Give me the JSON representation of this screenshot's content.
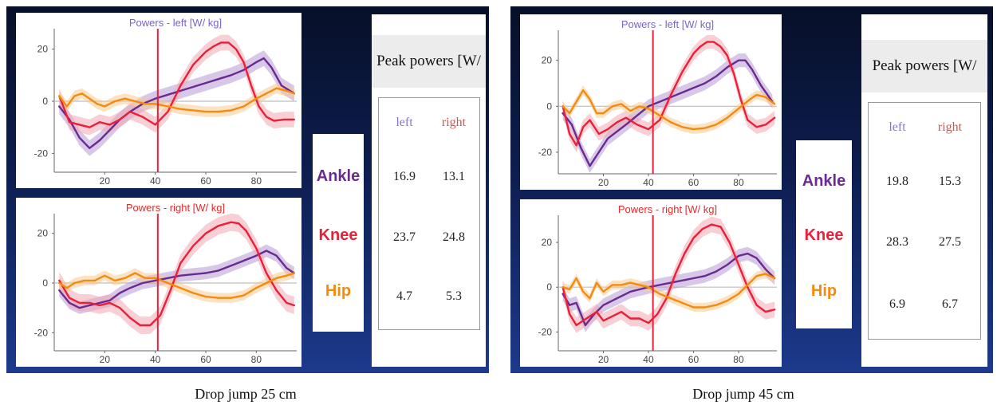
{
  "chart_data": [
    {
      "type": "line",
      "title": "Powers - left [W/ kg]",
      "xlabel": "",
      "ylabel": "",
      "xlim": [
        0,
        96
      ],
      "ylim": [
        -26,
        26
      ],
      "xticks": [
        20,
        40,
        60,
        80
      ],
      "yticks": [
        -20,
        0,
        20
      ],
      "vline_x": 41,
      "series": [
        {
          "name": "Ankle",
          "color": "#6a2a90",
          "band_color": "#b89ad6",
          "band": 3,
          "x": [
            2,
            6,
            10,
            14,
            18,
            22,
            26,
            30,
            35,
            40,
            45,
            50,
            55,
            60,
            65,
            70,
            75,
            80,
            83,
            86,
            90,
            95
          ],
          "y": [
            -2,
            -7,
            -14,
            -18,
            -15,
            -11,
            -7,
            -4,
            -1,
            1,
            2.5,
            4,
            5.5,
            7,
            8.5,
            10,
            12,
            15,
            16.5,
            13,
            6,
            3
          ]
        },
        {
          "name": "Knee",
          "color": "#e8203a",
          "band_color": "#f3a7b0",
          "band": 3,
          "x": [
            2,
            6,
            10,
            14,
            18,
            22,
            26,
            30,
            35,
            40,
            45,
            50,
            55,
            60,
            63,
            66,
            69,
            72,
            75,
            78,
            81,
            84,
            87,
            91,
            95
          ],
          "y": [
            2,
            -8,
            -9,
            -10,
            -8,
            -9,
            -7,
            -4,
            -6,
            -9,
            -4,
            6,
            14,
            19,
            21,
            22.5,
            22.5,
            20,
            15,
            6,
            -2,
            -6,
            -7.5,
            -7,
            -7
          ]
        },
        {
          "name": "Hip",
          "color": "#f58a10",
          "band_color": "#f8cb8f",
          "band": 2,
          "x": [
            2,
            5,
            8,
            11,
            14,
            17,
            20,
            24,
            28,
            32,
            36,
            40,
            45,
            50,
            55,
            60,
            65,
            70,
            75,
            80,
            85,
            88,
            92,
            95
          ],
          "y": [
            2,
            -2,
            2,
            3,
            1,
            -1,
            -2,
            0,
            1,
            0,
            -1,
            -1,
            -2,
            -3,
            -3.5,
            -4,
            -4,
            -3.5,
            -2,
            1,
            3.5,
            5,
            4,
            3
          ]
        }
      ]
    },
    {
      "type": "line",
      "title": "Powers - right [W/ kg]",
      "xlabel": "",
      "ylabel": "",
      "xlim": [
        0,
        96
      ],
      "ylim": [
        -26,
        26
      ],
      "xticks": [
        20,
        40,
        60,
        80
      ],
      "yticks": [
        -20,
        0,
        20
      ],
      "vline_x": 41,
      "series": [
        {
          "name": "Ankle",
          "color": "#6a2a90",
          "band_color": "#b89ad6",
          "band": 2.5,
          "x": [
            2,
            6,
            10,
            14,
            18,
            22,
            26,
            30,
            35,
            40,
            45,
            50,
            55,
            60,
            65,
            70,
            75,
            80,
            84,
            88,
            92,
            95
          ],
          "y": [
            -3,
            -8,
            -10,
            -9,
            -8,
            -7,
            -4,
            -2,
            0,
            1,
            2,
            3,
            3.5,
            4,
            5,
            7,
            9,
            11,
            13,
            11,
            6,
            4
          ]
        },
        {
          "name": "Knee",
          "color": "#e8203a",
          "band_color": "#f3a7b0",
          "band": 3.5,
          "x": [
            2,
            6,
            10,
            14,
            18,
            22,
            26,
            30,
            34,
            38,
            42,
            46,
            50,
            55,
            60,
            65,
            70,
            73,
            76,
            80,
            84,
            88,
            92,
            95
          ],
          "y": [
            1,
            -6,
            -8,
            -8,
            -9,
            -8,
            -10,
            -14,
            -17,
            -17,
            -13,
            -3,
            8,
            15,
            20,
            23,
            24.5,
            24,
            21,
            14,
            4,
            -3,
            -8,
            -9
          ]
        },
        {
          "name": "Hip",
          "color": "#f58a10",
          "band_color": "#f8cb8f",
          "band": 2,
          "x": [
            2,
            5,
            8,
            12,
            16,
            20,
            24,
            28,
            32,
            36,
            40,
            45,
            50,
            55,
            60,
            65,
            70,
            75,
            80,
            84,
            88,
            92,
            95
          ],
          "y": [
            0,
            -2,
            0,
            1,
            1,
            3,
            1,
            2,
            4,
            2,
            2,
            0,
            -2,
            -4,
            -5.5,
            -6,
            -6,
            -5,
            -2,
            0,
            2,
            3,
            4
          ]
        }
      ]
    },
    {
      "type": "line",
      "title": "Powers - left [W/ kg]",
      "xlabel": "",
      "ylabel": "",
      "xlim": [
        0,
        97
      ],
      "ylim": [
        -28,
        31
      ],
      "xticks": [
        20,
        40,
        60,
        80
      ],
      "yticks": [
        -20,
        0,
        20
      ],
      "vline_x": 42,
      "series": [
        {
          "name": "Ankle",
          "color": "#6a2a90",
          "band_color": "#b89ad6",
          "band": 3,
          "x": [
            2,
            6,
            10,
            14,
            18,
            22,
            26,
            30,
            35,
            40,
            45,
            50,
            55,
            60,
            65,
            70,
            75,
            80,
            83,
            86,
            90,
            95
          ],
          "y": [
            -3,
            -8,
            -18,
            -26,
            -20,
            -14,
            -11,
            -8,
            -4,
            0,
            2,
            4,
            6,
            8,
            10,
            13,
            17,
            20,
            20,
            16,
            9,
            2
          ]
        },
        {
          "name": "Knee",
          "color": "#e8203a",
          "band_color": "#f3a7b0",
          "band": 3,
          "x": [
            2,
            5,
            8,
            11,
            14,
            18,
            22,
            26,
            30,
            35,
            40,
            45,
            50,
            55,
            60,
            63,
            66,
            69,
            72,
            75,
            78,
            81,
            84,
            88,
            92,
            96
          ],
          "y": [
            0,
            -12,
            -17,
            -9,
            -6,
            -12,
            -10,
            -7,
            -5,
            -8,
            -10,
            -6,
            5,
            15,
            23,
            26,
            28,
            28,
            26,
            22,
            14,
            3,
            -6,
            -9,
            -8,
            -5
          ]
        },
        {
          "name": "Hip",
          "color": "#f58a10",
          "band_color": "#f8cb8f",
          "band": 2,
          "x": [
            2,
            5,
            8,
            11,
            14,
            17,
            20,
            24,
            28,
            32,
            36,
            40,
            45,
            50,
            55,
            60,
            65,
            70,
            75,
            80,
            85,
            88,
            92,
            96
          ],
          "y": [
            0,
            -3,
            2,
            7,
            3,
            -3,
            -3,
            0,
            1,
            -2,
            0,
            -1,
            -4,
            -7,
            -9,
            -10,
            -9.5,
            -8,
            -5,
            -1,
            3,
            5,
            4,
            1
          ]
        }
      ]
    },
    {
      "type": "line",
      "title": "Powers - right [W/ kg]",
      "xlabel": "",
      "ylabel": "",
      "xlim": [
        0,
        97
      ],
      "ylim": [
        -27,
        30
      ],
      "xticks": [
        20,
        40,
        60,
        80
      ],
      "yticks": [
        -20,
        0,
        20
      ],
      "vline_x": 42,
      "series": [
        {
          "name": "Ankle",
          "color": "#6a2a90",
          "band_color": "#b89ad6",
          "band": 3,
          "x": [
            2,
            5,
            8,
            12,
            16,
            20,
            24,
            28,
            32,
            36,
            40,
            45,
            50,
            55,
            60,
            65,
            70,
            75,
            80,
            84,
            88,
            92,
            96
          ],
          "y": [
            -3,
            -8,
            -7,
            -17,
            -12,
            -8,
            -6,
            -4,
            -2,
            -1,
            0,
            1,
            2,
            3,
            4,
            5,
            7,
            10,
            14,
            15,
            13,
            8,
            4
          ]
        },
        {
          "name": "Knee",
          "color": "#e8203a",
          "band_color": "#f3a7b0",
          "band": 3.5,
          "x": [
            2,
            5,
            8,
            11,
            14,
            17,
            20,
            24,
            28,
            32,
            36,
            40,
            44,
            48,
            52,
            56,
            60,
            64,
            68,
            72,
            76,
            80,
            84,
            88,
            92,
            96
          ],
          "y": [
            0,
            -12,
            -17,
            -15,
            -13,
            -11,
            -15,
            -13,
            -11,
            -14,
            -14,
            -16,
            -12,
            -5,
            6,
            15,
            22,
            26,
            28,
            27,
            20,
            10,
            0,
            -8,
            -11,
            -10
          ]
        },
        {
          "name": "Hip",
          "color": "#f58a10",
          "band_color": "#f8cb8f",
          "band": 2,
          "x": [
            2,
            5,
            8,
            11,
            14,
            17,
            20,
            24,
            28,
            32,
            36,
            40,
            45,
            50,
            55,
            60,
            65,
            70,
            75,
            80,
            85,
            88,
            92,
            96
          ],
          "y": [
            0,
            -1,
            4,
            -2,
            -5,
            2,
            -2,
            1,
            1,
            2,
            1,
            0,
            -3,
            -5,
            -7,
            -9,
            -9,
            -8,
            -6,
            -3,
            2,
            5,
            6,
            4
          ]
        }
      ]
    }
  ],
  "legend": {
    "ankle": "Ankle",
    "knee": "Knee",
    "hip": "Hip"
  },
  "tables": [
    {
      "title": "Peak powers [W/ kg]",
      "headers": [
        "left",
        "right"
      ],
      "rows": [
        [
          "16.9",
          "13.1"
        ],
        [
          "23.7",
          "24.8"
        ],
        [
          "4.7",
          "5.3"
        ]
      ]
    },
    {
      "title": "Peak powers [W/ kg]",
      "headers": [
        "left",
        "right"
      ],
      "rows": [
        [
          "19.8",
          "15.3"
        ],
        [
          "28.3",
          "27.5"
        ],
        [
          "6.9",
          "6.7"
        ]
      ]
    }
  ],
  "captions": [
    "Drop jump 25 cm",
    "Drop jump 45 cm"
  ],
  "colors": {
    "ankle": "#6a2a90",
    "knee": "#e8203a",
    "hip": "#f58a10",
    "title_left": "#7c64c8",
    "title_right": "#e82a2a",
    "vline": "#e8203a"
  }
}
